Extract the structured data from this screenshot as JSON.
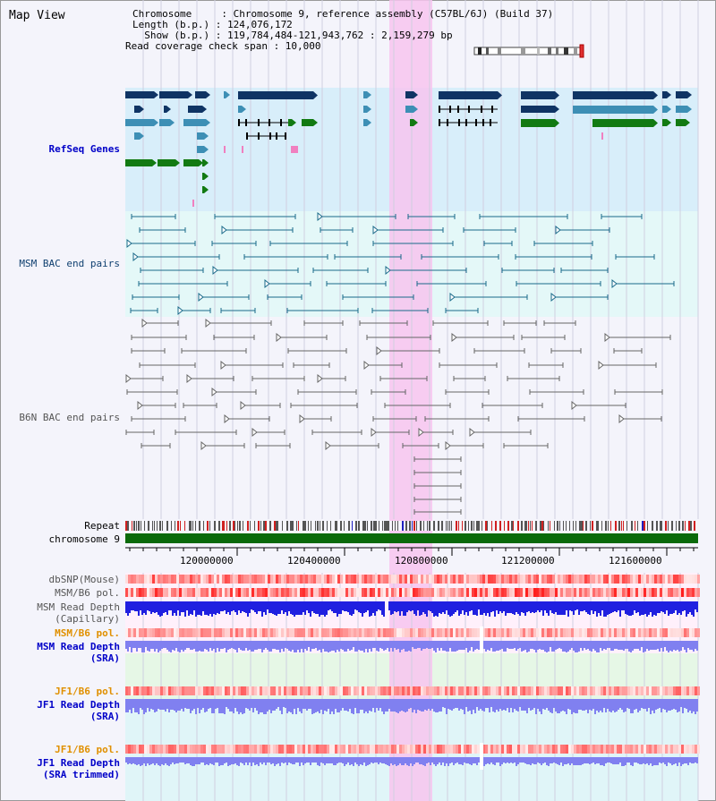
{
  "title": "Map View",
  "info": {
    "chromosome_line": "Chromosome     : Chromosome 9, reference assembly (C57BL/6J) (Build 37)",
    "length_line": "Length (b.p.) : 124,076,172",
    "show_line": "  Show (b.p.) : 119,784,484-121,943,762 : 2,159,279 bp",
    "coverage_line": "Read coverage check span : 10,000"
  },
  "tracks": {
    "refseq": "RefSeq Genes",
    "msm_bac": "MSM BAC end pairs",
    "b6n_bac": "B6N BAC end pairs",
    "repeat": "Repeat",
    "chromosome": "chromosome 9",
    "dbsnp": "dbSNP(Mouse)",
    "msm_b6_pol": "MSM/B6 pol.",
    "msm_depth_cap_1": "MSM Read Depth",
    "msm_depth_cap_2": "(Capillary)",
    "msm_b6_pol_2": "MSM/B6 pol.",
    "msm_depth_sra_1": "MSM Read Depth",
    "msm_depth_sra_2": "(SRA)",
    "jf1_b6_pol": "JF1/B6 pol.",
    "jf1_depth_sra_1": "JF1 Read Depth",
    "jf1_depth_sra_2": "(SRA)",
    "jf1_b6_pol_2": "JF1/B6 pol.",
    "jf1_depth_trim_1": "JF1 Read Depth",
    "jf1_depth_trim_2": "(SRA trimmed)"
  },
  "axis": {
    "ticks": [
      "120000000",
      "120400000",
      "120800000",
      "121200000",
      "121600000"
    ]
  },
  "colors": {
    "refseq_bg": "#d8eefa",
    "msm_bg": "#e4f8f8",
    "highlight": "#f7c4ee",
    "chrom_bar": "#0a6a0a",
    "gene_dark": "#0f3464",
    "gene_mid": "#3d8fb5",
    "gene_green": "#127a12",
    "bac_teal": "#1a6a8a",
    "bac_grey": "#666666",
    "depth_blue": "#2020e0",
    "depth_light": "#8080f0"
  }
}
